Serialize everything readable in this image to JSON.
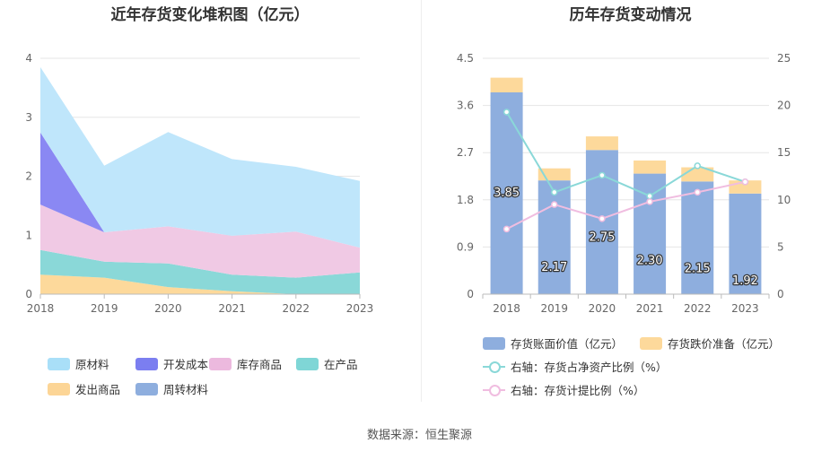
{
  "source_text": "数据来源：恒生聚源",
  "chart_data": [
    {
      "type": "area",
      "stacked": true,
      "title": "近年存货变化堆积图（亿元）",
      "x": [
        "2018",
        "2019",
        "2020",
        "2021",
        "2022",
        "2023"
      ],
      "ylim": [
        0,
        4
      ],
      "yticks": [
        "0",
        "1",
        "2",
        "3",
        "4"
      ],
      "grid": true,
      "legend_position": "bottom",
      "series": [
        {
          "name": "发出商品",
          "color": "#fdd99b",
          "values": [
            0.33,
            0.28,
            0.12,
            0.05,
            0.0,
            0.0
          ]
        },
        {
          "name": "在产品",
          "color": "#8ad8d8",
          "values": [
            0.42,
            0.27,
            0.4,
            0.28,
            0.28,
            0.37
          ]
        },
        {
          "name": "库存商品",
          "color": "#f0c9e4",
          "values": [
            0.77,
            0.5,
            0.63,
            0.66,
            0.78,
            0.42
          ]
        },
        {
          "name": "开发成本",
          "color": "#8a88f3",
          "values": [
            1.22,
            0.0,
            0.0,
            0.0,
            0.0,
            0.0
          ]
        },
        {
          "name": "原材料",
          "color": "#bfe6fb",
          "values": [
            1.11,
            1.13,
            1.6,
            1.3,
            1.1,
            1.13
          ]
        },
        {
          "name": "周转材料",
          "color": "#8eaede",
          "values": [
            0.0,
            0.0,
            0.0,
            0.0,
            0.0,
            0.0
          ]
        }
      ],
      "legend": [
        {
          "name": "原材料",
          "color": "#a9dff8"
        },
        {
          "name": "开发成本",
          "color": "#7b7ef0"
        },
        {
          "name": "库存商品",
          "color": "#ecb9de"
        },
        {
          "name": "在产品",
          "color": "#7fd6d6"
        },
        {
          "name": "发出商品",
          "color": "#fcd596"
        },
        {
          "name": "周转材料",
          "color": "#8eaede"
        }
      ]
    },
    {
      "type": "bar",
      "title": "历年存货变动情况",
      "x": [
        "2018",
        "2019",
        "2020",
        "2021",
        "2022",
        "2023"
      ],
      "ylim_left": [
        0,
        4.5
      ],
      "yticks_left": [
        "0",
        "0.9",
        "1.8",
        "2.7",
        "3.6",
        "4.5"
      ],
      "ylim_right": [
        0,
        25
      ],
      "yticks_right": [
        "0",
        "5",
        "10",
        "15",
        "20",
        "25"
      ],
      "grid": true,
      "legend_position": "bottom",
      "bar_series": [
        {
          "name": "存货账面价值（亿元）",
          "color": "#8eaede",
          "values": [
            3.85,
            2.17,
            2.75,
            2.3,
            2.15,
            1.92
          ],
          "labels": [
            "3.85",
            "2.17",
            "2.75",
            "2.30",
            "2.15",
            "1.92"
          ]
        },
        {
          "name": "存货跌价准备（亿元）",
          "color": "#fdd99b",
          "values": [
            0.28,
            0.23,
            0.26,
            0.25,
            0.27,
            0.25
          ]
        }
      ],
      "line_series": [
        {
          "name": "右轴：存货占净资产比例（%）",
          "color": "#8ad8d8",
          "values": [
            19.3,
            10.8,
            12.6,
            10.4,
            13.6,
            11.9
          ]
        },
        {
          "name": "右轴：存货计提比例（%）",
          "color": "#f0bde0",
          "values": [
            6.9,
            9.5,
            8.0,
            9.8,
            10.8,
            11.9
          ]
        }
      ]
    }
  ]
}
